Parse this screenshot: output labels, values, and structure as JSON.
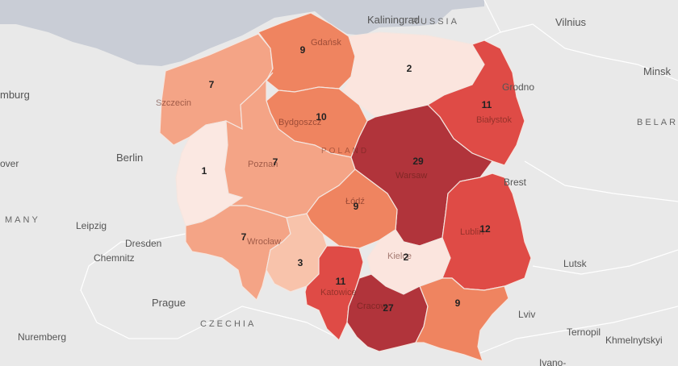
{
  "map": {
    "colors": {
      "sea": "#c9cdd6",
      "land": "#e9e9e9",
      "border": "#ffffff"
    },
    "regions": [
      {
        "id": "west-pomeranian",
        "value": "7",
        "color": "#f4a486"
      },
      {
        "id": "pomeranian",
        "value": "9",
        "color": "#ef8460"
      },
      {
        "id": "warmian-masurian",
        "value": "2",
        "color": "#fbe5de"
      },
      {
        "id": "podlaskie",
        "value": "11",
        "color": "#df4b46"
      },
      {
        "id": "kuyavian-pomeranian",
        "value": "10",
        "color": "#ef8460"
      },
      {
        "id": "lubusz",
        "value": "1",
        "color": "#fbe8e2"
      },
      {
        "id": "greater-poland",
        "value": "7",
        "color": "#f4a486"
      },
      {
        "id": "masovian",
        "value": "29",
        "color": "#b1343b"
      },
      {
        "id": "lodz",
        "value": "9",
        "color": "#ef8460"
      },
      {
        "id": "lower-silesian",
        "value": "7",
        "color": "#f4a486"
      },
      {
        "id": "opole",
        "value": "3",
        "color": "#f8c3ab"
      },
      {
        "id": "silesian",
        "value": "11",
        "color": "#df4b46"
      },
      {
        "id": "swietokrzyskie",
        "value": "2",
        "color": "#fbe5de"
      },
      {
        "id": "lublin",
        "value": "12",
        "color": "#df4b46"
      },
      {
        "id": "lesser-poland",
        "value": "27",
        "color": "#b1343b"
      },
      {
        "id": "subcarpathian",
        "value": "9",
        "color": "#ef8460"
      }
    ],
    "labels": {
      "kaliningrad": "Kaliningrad",
      "russia": "RUSSIA",
      "vilnius": "Vilnius",
      "hamburg": "mburg",
      "minsk": "Minsk",
      "grodno": "Grodno",
      "belarus": "BELAR",
      "berlin": "Berlin",
      "hanover": "over",
      "germany": "MANY",
      "leipzig": "Leipzig",
      "dresden": "Dresden",
      "chemnitz": "Chemnitz",
      "prague": "Prague",
      "czechia": "CZECHIA",
      "nuremberg": "Nuremberg",
      "brest": "Brest",
      "lutsk": "Lutsk",
      "lviv": "Lviv",
      "ternopil": "Ternopil",
      "khmelnytskyi": "Khmelnytskyi",
      "ivano": "Ivano-",
      "gdansk": "Gdańsk",
      "szczecin": "Szczecin",
      "bydgoszcz": "Bydgoszcz",
      "bialystok": "Białystok",
      "poland": "POLAND",
      "warsaw": "Warsaw",
      "poznan": "Poznań",
      "lodz": "Łódź",
      "wroclaw": "Wrocław",
      "lublin": "Lublin",
      "kielce": "Kielce",
      "katowice": "Katowice",
      "cracow": "Cracow"
    }
  }
}
